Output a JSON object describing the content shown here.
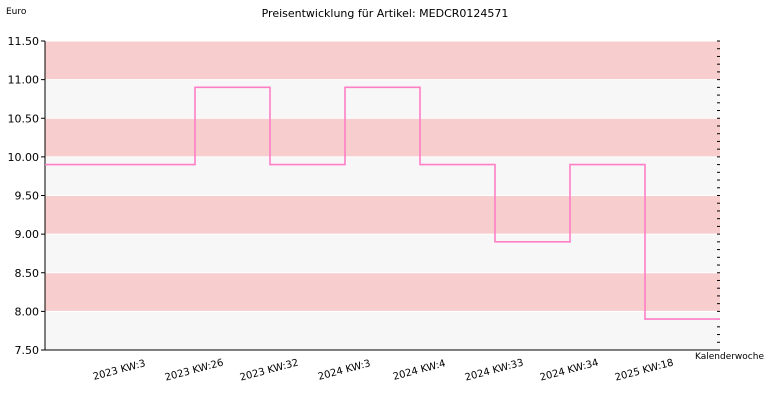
{
  "chart_data": {
    "type": "line",
    "step": true,
    "title": "Preisentwicklung für Artikel: MEDCR0124571",
    "ylabel": "Euro",
    "xlabel": "Kalenderwoche",
    "ylim": [
      7.5,
      11.5
    ],
    "yticks": [
      "7.50",
      "8.00",
      "8.50",
      "9.00",
      "9.50",
      "10.00",
      "10.50",
      "11.00",
      "11.50"
    ],
    "categories": [
      "2023 KW:3",
      "2023 KW:26",
      "2023 KW:32",
      "2024 KW:3",
      "2024 KW:4",
      "2024 KW:33",
      "2024 KW:34",
      "2025 KW:18"
    ],
    "series": [
      {
        "values": [
          9.9,
          10.9,
          9.9,
          10.9,
          9.9,
          8.9,
          9.9,
          7.9
        ]
      }
    ],
    "grid": true,
    "band_colors": [
      "#f7f7f7",
      "#f8cdcd"
    ],
    "line_color": "#ff7fc7"
  }
}
